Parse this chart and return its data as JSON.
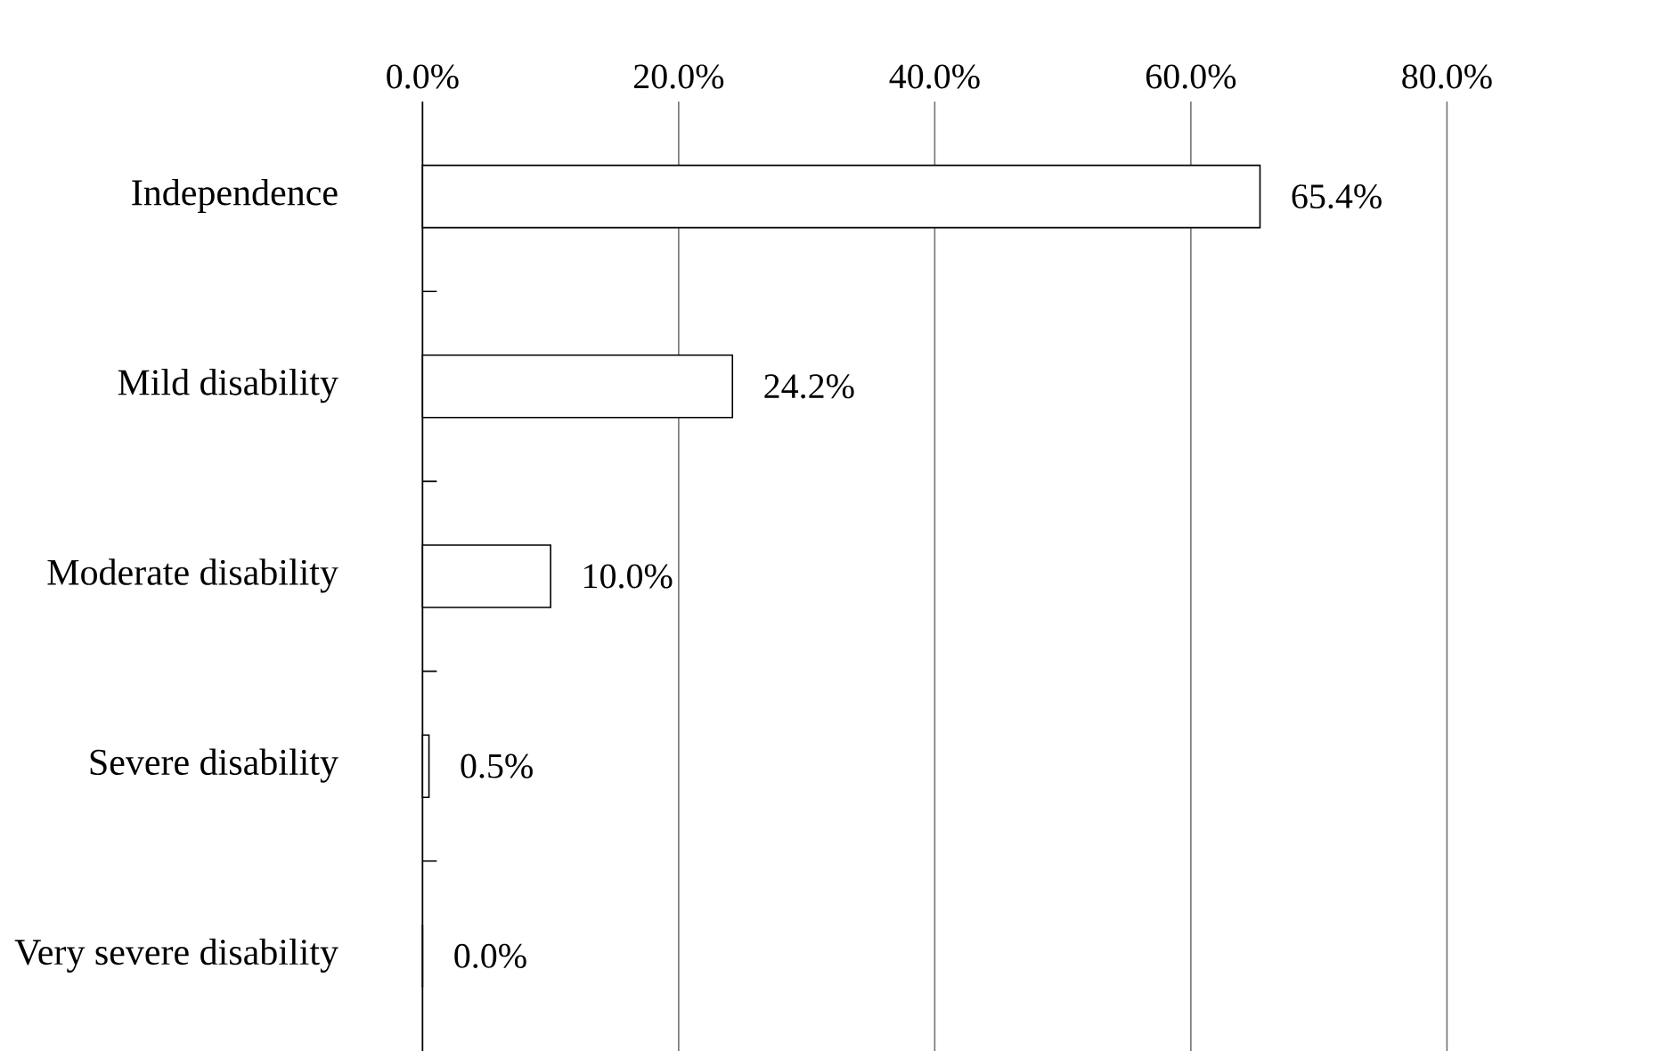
{
  "chart_data": {
    "type": "bar",
    "orientation": "horizontal",
    "categories": [
      "Independence",
      "Mild disability",
      "Moderate disability",
      "Severe disability",
      "Very severe disability"
    ],
    "values": [
      65.4,
      24.2,
      10.0,
      0.5,
      0.0
    ],
    "value_labels": [
      "65.4%",
      "24.2%",
      "10.0%",
      "0.5%",
      "0.0%"
    ],
    "color": "#ffffff",
    "xlim": [
      0,
      80
    ],
    "xticks": [
      {
        "value": 0,
        "label": "0.0%"
      },
      {
        "value": 20,
        "label": "20.0%"
      },
      {
        "value": 40,
        "label": "40.0%"
      },
      {
        "value": 60,
        "label": "60.0%"
      },
      {
        "value": 80,
        "label": "80.0%"
      }
    ],
    "grid": "x"
  }
}
